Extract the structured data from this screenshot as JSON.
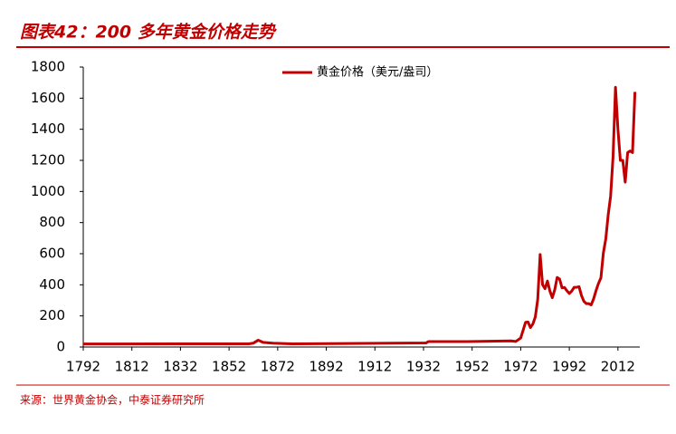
{
  "chart_data": {
    "type": "line",
    "title": "图表42：200 多年黄金价格走势",
    "source": "来源：世界黄金协会，中泰证券研究所",
    "x": [
      1792,
      1830,
      1860,
      1862,
      1864,
      1866,
      1870,
      1878,
      1933,
      1934,
      1945,
      1950,
      1968,
      1970,
      1972,
      1974,
      1975,
      1976,
      1977,
      1978,
      1979,
      1980,
      1981,
      1982,
      1983,
      1984,
      1985,
      1986,
      1987,
      1988,
      1989,
      1990,
      1991,
      1992,
      1993,
      1994,
      1995,
      1996,
      1997,
      1998,
      1999,
      2000,
      2001,
      2002,
      2003,
      2004,
      2005,
      2006,
      2007,
      2008,
      2009,
      2010,
      2011,
      2012,
      2013,
      2014,
      2015,
      2016,
      2017,
      2018,
      2019
    ],
    "series": [
      {
        "name": "黄金价格（美元/盎司）",
        "color": "#c00000",
        "values": [
          19.4,
          20.65,
          20.67,
          25,
          44,
          30,
          25,
          20.67,
          26,
          35,
          35,
          34.7,
          39,
          36,
          58,
          159,
          161,
          125,
          148,
          193,
          306,
          595,
          400,
          375,
          424,
          360,
          317,
          368,
          447,
          437,
          381,
          383,
          362,
          344,
          360,
          384,
          384,
          388,
          331,
          294,
          279,
          279,
          271,
          310,
          363,
          409,
          445,
          604,
          695,
          850,
          972,
          1225,
          1670,
          1400,
          1200,
          1200,
          1060,
          1250,
          1260,
          1250,
          1640
        ]
      }
    ],
    "xlim": [
      1792,
      2021
    ],
    "xticks": [
      1792,
      1812,
      1832,
      1852,
      1872,
      1892,
      1912,
      1932,
      1952,
      1972,
      1992,
      2012
    ],
    "ylim": [
      0,
      1800
    ],
    "yticks": [
      0,
      200,
      400,
      600,
      800,
      1000,
      1200,
      1400,
      1600,
      1800
    ],
    "grid": false,
    "legend": "top"
  }
}
